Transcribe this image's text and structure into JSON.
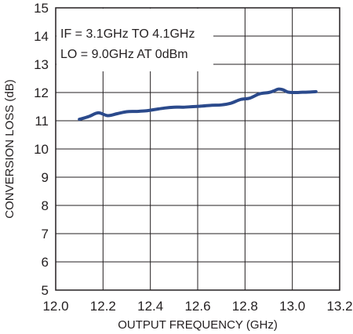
{
  "chart_data": {
    "type": "line",
    "annotations": [
      "IF = 3.1GHz TO 4.1GHz",
      "LO = 9.0GHz AT 0dBm"
    ],
    "xlabel": "OUTPUT FREQUENCY (GHz)",
    "ylabel": "CONVERSION LOSS (dB)",
    "xlim": [
      12.0,
      13.2
    ],
    "ylim": [
      5,
      15
    ],
    "xticks": [
      "12.0",
      "12.2",
      "12.4",
      "12.6",
      "12.8",
      "13.0",
      "13.2"
    ],
    "yticks": [
      "5",
      "6",
      "7",
      "8",
      "9",
      "10",
      "11",
      "12",
      "13",
      "14",
      "15"
    ],
    "grid": true,
    "color": "#2b4a8c",
    "series": [
      {
        "x": [
          12.1,
          12.14,
          12.18,
          12.22,
          12.26,
          12.3,
          12.34,
          12.38,
          12.42,
          12.46,
          12.5,
          12.54,
          12.58,
          12.62,
          12.66,
          12.7,
          12.74,
          12.78,
          12.82,
          12.86,
          12.9,
          12.92,
          12.94,
          12.96,
          12.98,
          13.0,
          13.05,
          13.1
        ],
        "y": [
          11.05,
          11.15,
          11.28,
          11.18,
          11.25,
          11.32,
          11.33,
          11.35,
          11.4,
          11.45,
          11.48,
          11.48,
          11.5,
          11.52,
          11.55,
          11.56,
          11.62,
          11.75,
          11.8,
          11.95,
          12.0,
          12.05,
          12.12,
          12.1,
          12.02,
          12.0,
          12.01,
          12.03
        ]
      }
    ]
  }
}
